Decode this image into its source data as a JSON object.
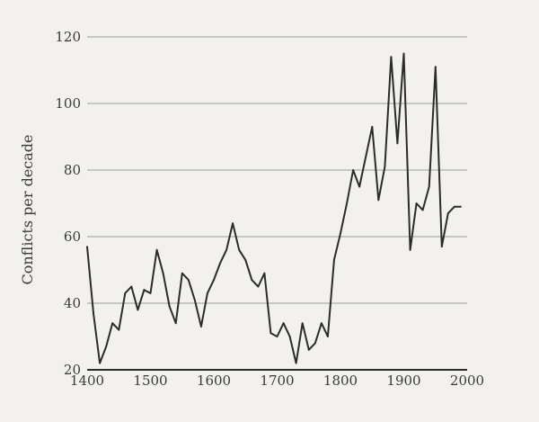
{
  "chart_data": {
    "type": "line",
    "title": "",
    "xlabel": "",
    "ylabel": "Conflicts per decade",
    "xlim": [
      1400,
      2000
    ],
    "ylim": [
      20,
      120
    ],
    "grid": "horizontal",
    "x_ticks": [
      1400,
      1500,
      1600,
      1700,
      1800,
      1900,
      2000
    ],
    "y_ticks": [
      20,
      40,
      60,
      80,
      100,
      120
    ],
    "colors": {
      "line": "#2b2b2b",
      "grid": "#9a9a9a",
      "axis": "#2b2b2b"
    },
    "series": [
      {
        "x": [
          1400,
          1410,
          1420,
          1430,
          1440,
          1450,
          1460,
          1470,
          1480,
          1490,
          1500,
          1510,
          1520,
          1530,
          1540,
          1550,
          1560,
          1570,
          1580,
          1590,
          1600,
          1610,
          1620,
          1630,
          1640,
          1650,
          1660,
          1670,
          1680,
          1690,
          1700,
          1710,
          1720,
          1730,
          1740,
          1750,
          1760,
          1770,
          1780,
          1790,
          1800,
          1810,
          1820,
          1830,
          1840,
          1850,
          1860,
          1870,
          1880,
          1890,
          1900,
          1910,
          1920,
          1930,
          1940,
          1950,
          1960,
          1970,
          1980,
          1990
        ],
        "values": [
          57,
          37,
          22,
          27,
          34,
          32,
          43,
          45,
          38,
          44,
          43,
          56,
          49,
          39,
          34,
          49,
          47,
          41,
          33,
          43,
          47,
          52,
          56,
          64,
          56,
          53,
          47,
          45,
          49,
          31,
          30,
          34,
          30,
          22,
          34,
          26,
          28,
          34,
          30,
          53,
          61,
          70,
          80,
          75,
          84,
          93,
          71,
          81,
          114,
          88,
          115,
          56,
          70,
          68,
          75,
          111,
          57,
          67,
          69,
          69
        ]
      }
    ]
  }
}
